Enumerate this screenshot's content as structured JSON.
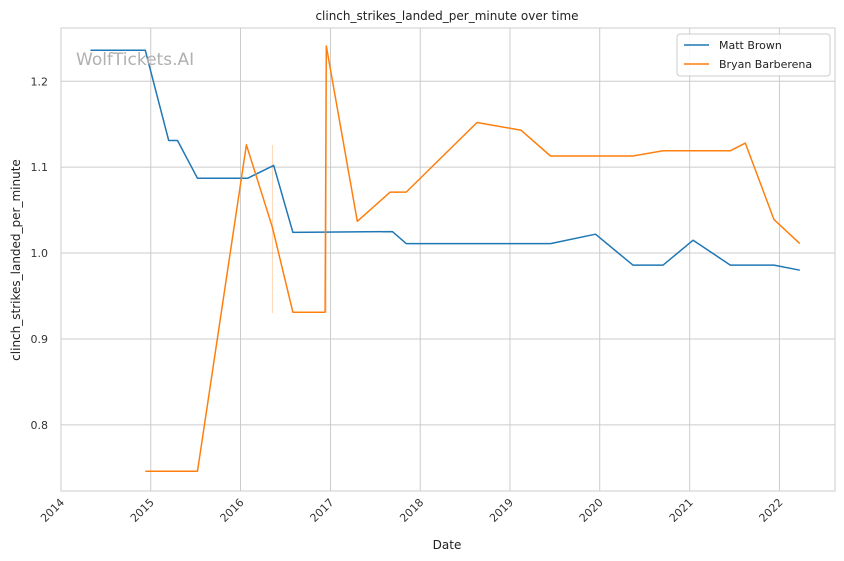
{
  "watermark": "WolfTickets.AI",
  "chart_data": {
    "type": "line",
    "title": "clinch_strikes_landed_per_minute over time",
    "xlabel": "Date",
    "ylabel": "clinch_strikes_landed_per_minute",
    "x_tick_labels": [
      "2014",
      "2015",
      "2016",
      "2017",
      "2018",
      "2019",
      "2020",
      "2021",
      "2022"
    ],
    "y_ticks": [
      0.8,
      0.9,
      1.0,
      1.1,
      1.2
    ],
    "xlim": [
      "2014-01-01",
      "2022-08-15"
    ],
    "ylim": [
      0.723,
      1.262
    ],
    "grid": true,
    "legend_position": "top-right",
    "colors": {
      "Matt Brown": "#1f77b4",
      "Bryan Barberena": "#ff7f0e"
    },
    "series": [
      {
        "name": "Matt Brown",
        "color": "#1f77b4",
        "points": [
          [
            "2014-05-01",
            1.236
          ],
          [
            "2014-12-10",
            1.236
          ],
          [
            "2015-03-15",
            1.131
          ],
          [
            "2015-04-20",
            1.131
          ],
          [
            "2015-07-10",
            1.087
          ],
          [
            "2016-01-30",
            1.087
          ],
          [
            "2016-05-15",
            1.102
          ],
          [
            "2016-08-01",
            1.024
          ],
          [
            "2017-09-10",
            1.025
          ],
          [
            "2017-11-05",
            1.011
          ],
          [
            "2019-06-15",
            1.011
          ],
          [
            "2019-12-15",
            1.022
          ],
          [
            "2020-05-15",
            0.986
          ],
          [
            "2020-09-15",
            0.986
          ],
          [
            "2021-01-15",
            1.015
          ],
          [
            "2021-06-15",
            0.986
          ],
          [
            "2021-12-10",
            0.986
          ],
          [
            "2022-03-25",
            0.98
          ]
        ]
      },
      {
        "name": "Bryan Barberena",
        "color": "#ff7f0e",
        "points": [
          [
            "2014-12-10",
            0.746
          ],
          [
            "2015-07-10",
            0.746
          ],
          [
            "2016-01-25",
            1.126
          ],
          [
            "2016-05-10",
            1.03
          ],
          [
            "2016-08-01",
            0.931
          ],
          [
            "2016-12-10",
            0.931
          ],
          [
            "2016-12-15",
            1.241
          ],
          [
            "2017-04-20",
            1.037
          ],
          [
            "2017-09-01",
            1.071
          ],
          [
            "2017-11-05",
            1.071
          ],
          [
            "2018-08-20",
            1.152
          ],
          [
            "2019-02-15",
            1.143
          ],
          [
            "2019-06-15",
            1.113
          ],
          [
            "2020-05-15",
            1.113
          ],
          [
            "2020-09-15",
            1.119
          ],
          [
            "2021-06-15",
            1.119
          ],
          [
            "2021-08-15",
            1.128
          ],
          [
            "2021-12-10",
            1.039
          ],
          [
            "2022-03-25",
            1.011
          ]
        ]
      }
    ],
    "vertical_marks": [
      {
        "color": "#ff7f0e",
        "x": "2016-05-10",
        "y_range": [
          0.93,
          1.126
        ]
      },
      {
        "color": "#ff7f0e",
        "x": "2016-12-15",
        "y_range": [
          0.931,
          1.241
        ]
      }
    ]
  }
}
